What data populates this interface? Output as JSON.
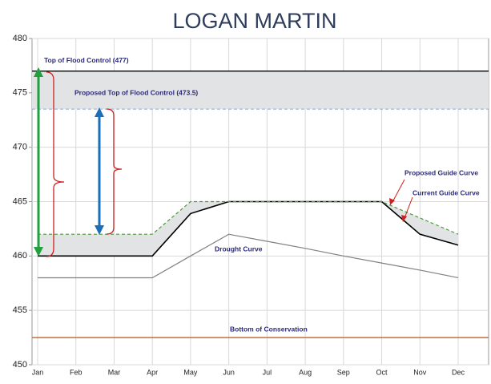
{
  "chart_data": {
    "type": "line",
    "title": "LOGAN MARTIN",
    "categories": [
      "Jan",
      "Feb",
      "Mar",
      "Apr",
      "May",
      "Jun",
      "Jul",
      "Aug",
      "Sep",
      "Oct",
      "Nov",
      "Dec"
    ],
    "ylim": [
      450,
      480
    ],
    "yticks": [
      450,
      455,
      460,
      465,
      470,
      475,
      480
    ],
    "grid": true,
    "series": [
      {
        "name": "Current Guide Curve",
        "color": "#000000",
        "dashed": false,
        "values": [
          460,
          460,
          460,
          460,
          463.9,
          465,
          465,
          465,
          465,
          465,
          462,
          461
        ]
      },
      {
        "name": "Proposed Guide Curve",
        "color": "#4a9a3a",
        "dashed": true,
        "values": [
          462,
          462,
          462,
          462,
          465,
          465,
          465,
          465,
          465,
          465,
          463.5,
          462
        ]
      },
      {
        "name": "Drought Curve",
        "color": "#808080",
        "dashed": false,
        "values": [
          458,
          458,
          458,
          458,
          460,
          462,
          461.35,
          460.7,
          460,
          459.35,
          458.7,
          458
        ]
      }
    ],
    "reference_lines": [
      {
        "label": "Top of Flood Control (477)",
        "value": 477,
        "color": "#000000",
        "dashed": false
      },
      {
        "label": "Proposed Top of Flood Control (473.5)",
        "value": 473.5,
        "color": "#8fa8d8",
        "dashed": true
      },
      {
        "label": "Bottom of Conservation",
        "value": 452.5,
        "color": "#c0622a",
        "dashed": false
      }
    ]
  }
}
